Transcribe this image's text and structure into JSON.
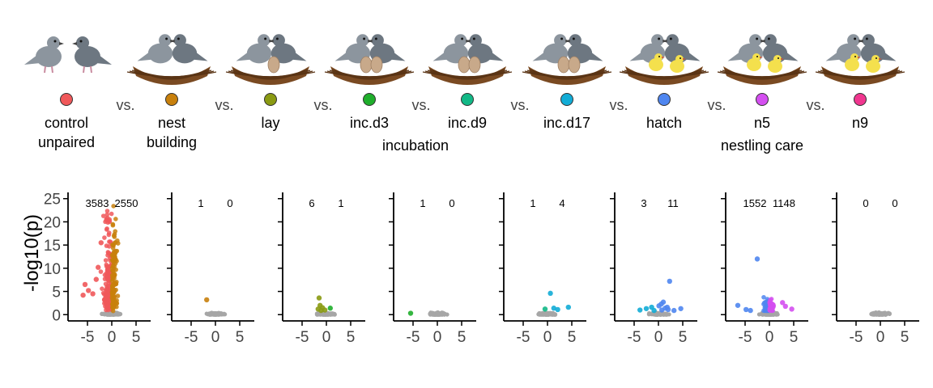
{
  "stages": [
    {
      "id": "control",
      "label1": "control",
      "label2": "unpaired",
      "color": "#f0585a",
      "scene": "pair"
    },
    {
      "id": "bldg",
      "label1": "nest",
      "label2": "building",
      "color": "#c8800c",
      "scene": "nest"
    },
    {
      "id": "lay",
      "label1": "lay",
      "label2": "",
      "color": "#8a9a12",
      "scene": "egg1"
    },
    {
      "id": "inc_d3",
      "label1": "inc.d3",
      "label2": "",
      "color": "#1fae2b",
      "scene": "egg2"
    },
    {
      "id": "inc_d9",
      "label1": "inc.d9",
      "label2": "",
      "color": "#12b886",
      "scene": "egg2"
    },
    {
      "id": "inc_d17",
      "label1": "inc.d17",
      "label2": "",
      "color": "#12acd6",
      "scene": "egg2"
    },
    {
      "id": "hatch",
      "label1": "hatch",
      "label2": "",
      "color": "#4f86f0",
      "scene": "chick2"
    },
    {
      "id": "n5",
      "label1": "n5",
      "label2": "",
      "color": "#d44ff0",
      "scene": "chick2"
    },
    {
      "id": "n9",
      "label1": "n9",
      "label2": "",
      "color": "#f0368f",
      "scene": "chick2"
    }
  ],
  "vs_label": "vs.",
  "group_labels": {
    "incubation": "incubation",
    "nestling_care": "nestling care"
  },
  "colors": {
    "nonsig": "#a6a6a6",
    "axis": "#000000",
    "bird_body": "#8c959e",
    "bird_body2": "#6d7781",
    "nest": "#7a4a22",
    "egg": "#c8a98a",
    "chick": "#f4e04d"
  },
  "chart_data": {
    "type": "scatter",
    "subtype": "volcano",
    "ylabel": "-log10(p)",
    "xlim": [
      -8,
      8
    ],
    "ylim": [
      -1,
      26
    ],
    "xticks": [
      -5,
      0,
      5
    ],
    "yticks": [
      0,
      5,
      10,
      15,
      20,
      25
    ],
    "nonsig_color": "#a6a6a6",
    "panels": [
      {
        "comparison": "control vs nest building",
        "left_count": "3583",
        "right_count": "2550",
        "left_color": "#f0585a",
        "right_color": "#c8800c",
        "sig_left": 3583,
        "sig_right": 2550,
        "sig_spread": 3.5,
        "sig_max": 25,
        "highlight_points": [
          [
            -5.5,
            6.5
          ],
          [
            -4.8,
            5.2
          ],
          [
            -3.9,
            4.5
          ],
          [
            -2.8,
            10.2
          ],
          [
            -3.2,
            7.6
          ],
          [
            -5.9,
            4.2
          ],
          [
            -2.2,
            15.5
          ]
        ]
      },
      {
        "comparison": "nest building vs lay",
        "left_count": "1",
        "right_count": "0",
        "left_color": "#c8800c",
        "right_color": "#8a9a12",
        "sig_left": 1,
        "sig_right": 0,
        "sig_spread": 0,
        "sig_max": 0,
        "highlight_points": [
          [
            -1.8,
            3.2
          ]
        ]
      },
      {
        "comparison": "lay vs inc.d3",
        "left_count": "6",
        "right_count": "1",
        "left_color": "#8a9a12",
        "right_color": "#1fae2b",
        "sig_left": 6,
        "sig_right": 1,
        "sig_spread": 0,
        "sig_max": 0,
        "highlight_points": [
          [
            -1.5,
            3.6
          ],
          [
            -1.3,
            2.0
          ],
          [
            -0.8,
            1.5
          ],
          [
            -1.7,
            1.2
          ],
          [
            -0.3,
            1.0
          ],
          [
            -1.1,
            0.9
          ],
          [
            0.8,
            1.4
          ]
        ]
      },
      {
        "comparison": "inc.d3 vs inc.d9",
        "left_count": "1",
        "right_count": "0",
        "left_color": "#1fae2b",
        "right_color": "#12b886",
        "sig_left": 1,
        "sig_right": 0,
        "sig_spread": 0,
        "sig_max": 0,
        "highlight_points": [
          [
            -5.5,
            0.3
          ]
        ]
      },
      {
        "comparison": "inc.d9 vs inc.d17",
        "left_count": "1",
        "right_count": "4",
        "left_color": "#12b886",
        "right_color": "#12acd6",
        "sig_left": 1,
        "sig_right": 4,
        "sig_spread": 0,
        "sig_max": 0,
        "highlight_points": [
          [
            -0.5,
            1.2
          ],
          [
            0.6,
            4.6
          ],
          [
            1.3,
            1.4
          ],
          [
            4.3,
            1.6
          ],
          [
            2.1,
            1.1
          ]
        ]
      },
      {
        "comparison": "inc.d17 vs hatch",
        "left_count": "3",
        "right_count": "11",
        "left_color": "#12acd6",
        "right_color": "#4f86f0",
        "sig_left": 3,
        "sig_right": 11,
        "sig_spread": 0,
        "sig_max": 0,
        "highlight_points": [
          [
            2.3,
            7.2
          ],
          [
            -3.8,
            1.0
          ],
          [
            -2.5,
            1.3
          ],
          [
            -1.4,
            1.6
          ],
          [
            0.1,
            1.9
          ],
          [
            0.6,
            2.3
          ],
          [
            1.0,
            2.7
          ],
          [
            1.4,
            1.4
          ],
          [
            2.0,
            1.1
          ],
          [
            4.6,
            1.3
          ],
          [
            -0.9,
            0.9
          ],
          [
            0.7,
            1.0
          ],
          [
            1.8,
            1.6
          ],
          [
            3.2,
            0.9
          ]
        ]
      },
      {
        "comparison": "hatch vs n5",
        "left_count": "1552",
        "right_count": "1148",
        "left_color": "#4f86f0",
        "right_color": "#d44ff0",
        "sig_left": 1552,
        "sig_right": 1148,
        "sig_spread": 2.6,
        "sig_max": 4,
        "highlight_points": [
          [
            -2.5,
            12.0
          ],
          [
            -6.5,
            2.0
          ],
          [
            -4.8,
            1.1
          ],
          [
            4.6,
            1.2
          ],
          [
            3.3,
            1.8
          ],
          [
            2.7,
            2.6
          ],
          [
            -3.9,
            0.9
          ]
        ]
      },
      {
        "comparison": "n5 vs n9",
        "left_count": "0",
        "right_count": "0",
        "left_color": "#d44ff0",
        "right_color": "#f0368f",
        "sig_left": 0,
        "sig_right": 0,
        "sig_spread": 0,
        "sig_max": 0,
        "highlight_points": []
      }
    ]
  }
}
